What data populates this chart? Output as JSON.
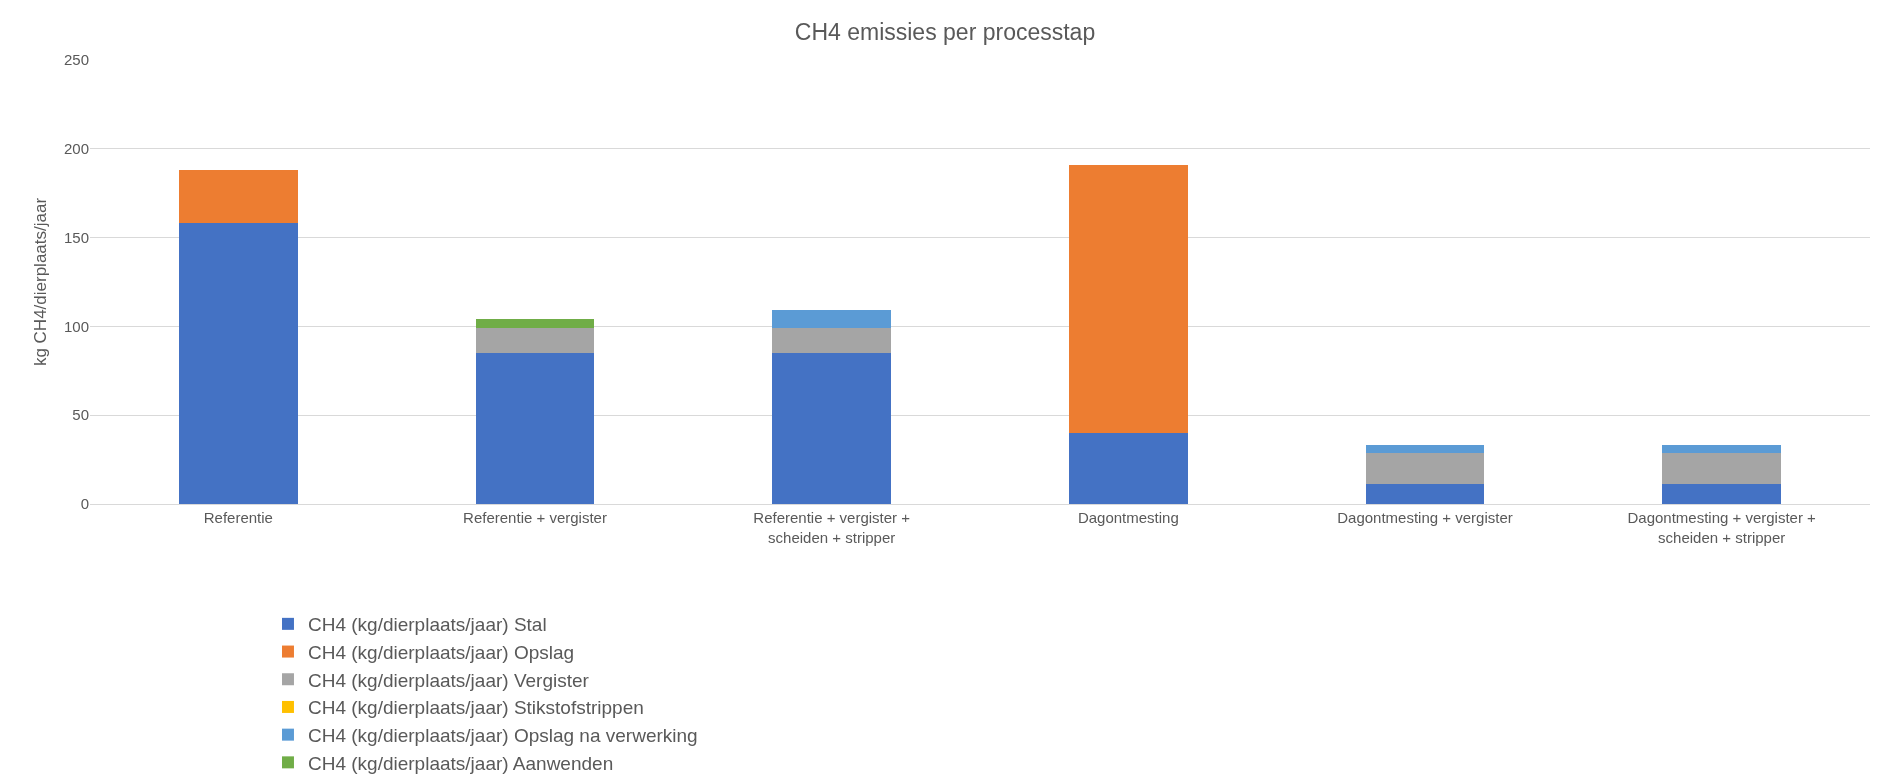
{
  "chart_data": {
    "type": "bar",
    "title": "CH4 emissies per processtap",
    "ylabel": "kg CH4/dierplaats/jaar",
    "categories": [
      "Referentie",
      "Referentie + vergister",
      "Referentie + vergister + scheiden + stripper",
      "Dagontmesting",
      "Dagontmesting + vergister",
      "Dagontmesting + vergister + scheiden + stripper"
    ],
    "stacked": true,
    "series": [
      {
        "name": "CH4 (kg/dierplaats/jaar) Stal",
        "color": "#4472c4",
        "values": [
          158,
          85,
          85,
          40,
          11,
          11
        ]
      },
      {
        "name": "CH4 (kg/dierplaats/jaar) Opslag",
        "color": "#ed7d31",
        "values": [
          30,
          null,
          null,
          151,
          null,
          null
        ]
      },
      {
        "name": "CH4 (kg/dierplaats/jaar) Vergister",
        "color": "#a5a5a5",
        "values": [
          null,
          14,
          14,
          null,
          18,
          18
        ]
      },
      {
        "name": "CH4 (kg/dierplaats/jaar) Stikstofstrippen",
        "color": "#ffc000",
        "values": [
          null,
          null,
          null,
          null,
          null,
          null
        ]
      },
      {
        "name": "CH4 (kg/dierplaats/jaar) Opslag na verwerking",
        "color": "#5b9bd5",
        "values": [
          null,
          null,
          10,
          null,
          4.5,
          4
        ]
      },
      {
        "name": "CH4 (kg/dierplaats/jaar) Aanwenden",
        "color": "#70ad47",
        "values": [
          null,
          5,
          null,
          null,
          null,
          null
        ]
      }
    ],
    "ylim": [
      0,
      250
    ],
    "yticks": [
      0,
      50,
      100,
      150,
      200,
      250
    ],
    "grid": "y",
    "legend": "bottom"
  }
}
